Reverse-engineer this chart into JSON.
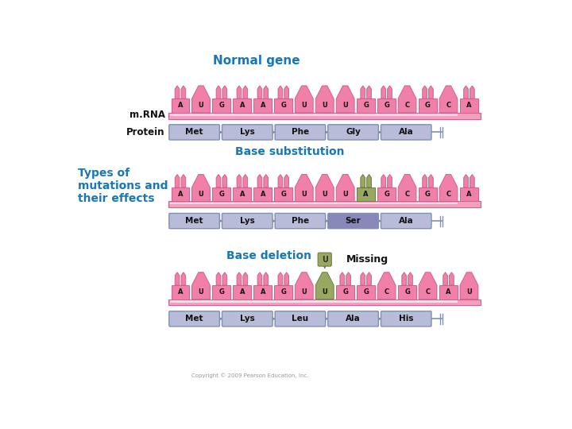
{
  "title_normal": "Normal gene",
  "title_base_sub": "Base substitution",
  "title_base_del": "Base deletion",
  "title_types": "Types of\nmutations and\ntheir effects",
  "title_missing": "Missing",
  "bg_color": "#ffffff",
  "mrna_bar_color": "#f4a0bc",
  "mrna_highlight_color": "#fcd8e8",
  "nucleotide_color": "#f080a8",
  "nucleotide_edge_color": "#d06090",
  "nucleotide_special_color": "#98a860",
  "nucleotide_special_edge_color": "#707840",
  "protein_box_color": "#b8bcd8",
  "protein_box_special_color": "#8888b8",
  "protein_edge_color": "#8090b0",
  "text_color": "#111111",
  "label_color": "#111111",
  "title_color": "#1878b4",
  "types_color": "#1878b4",
  "copyright_color": "#999999",
  "normal_seq": [
    "A",
    "U",
    "G",
    "A",
    "A",
    "G",
    "U",
    "U",
    "U",
    "G",
    "G",
    "C",
    "G",
    "C",
    "A"
  ],
  "normal_protein": [
    "Met",
    "Lys",
    "Phe",
    "Gly",
    "Ala"
  ],
  "sub_seq": [
    "A",
    "U",
    "G",
    "A",
    "A",
    "G",
    "U",
    "U",
    "U",
    "A",
    "G",
    "C",
    "G",
    "C",
    "A"
  ],
  "sub_special_idx": 9,
  "sub_protein": [
    "Met",
    "Lys",
    "Phe",
    "Ser",
    "Ala"
  ],
  "sub_special_protein_idx": 3,
  "del_seq": [
    "A",
    "U",
    "G",
    "A",
    "A",
    "G",
    "U",
    "U",
    "G",
    "G",
    "C",
    "G",
    "C",
    "A",
    "U"
  ],
  "del_special_idx": 7,
  "del_protein": [
    "Met",
    "Lys",
    "Leu",
    "Ala",
    "His"
  ],
  "del_missing_label": "U",
  "copyright": "Copyright © 2009 Pearson Education, Inc."
}
